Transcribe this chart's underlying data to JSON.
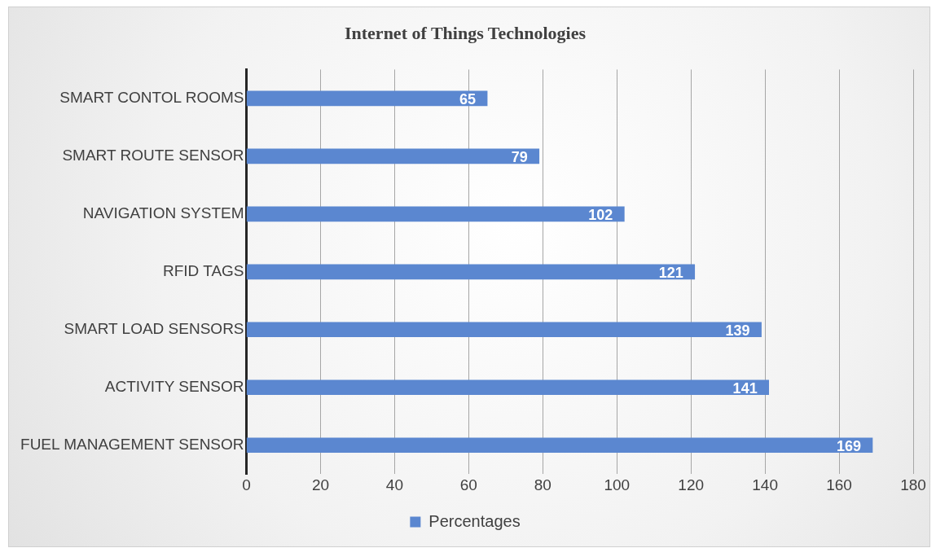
{
  "chart_data": {
    "type": "bar",
    "orientation": "horizontal",
    "title": "Internet of Things Technologies",
    "categories": [
      "SMART CONTOL ROOMS",
      "SMART ROUTE SENSOR",
      "NAVIGATION SYSTEM",
      "RFID TAGS",
      "SMART LOAD SENSORS",
      "ACTIVITY SENSOR",
      "FUEL MANAGEMENT SENSOR"
    ],
    "series": [
      {
        "name": "Percentages",
        "color": "#5b87d0",
        "values": [
          65,
          79,
          102,
          121,
          139,
          141,
          169
        ]
      }
    ],
    "xlim": [
      0,
      180
    ],
    "xticks": [
      0,
      20,
      40,
      60,
      80,
      100,
      120,
      140,
      160,
      180
    ],
    "grid": "x",
    "legend": "bottom",
    "data_labels": true
  }
}
